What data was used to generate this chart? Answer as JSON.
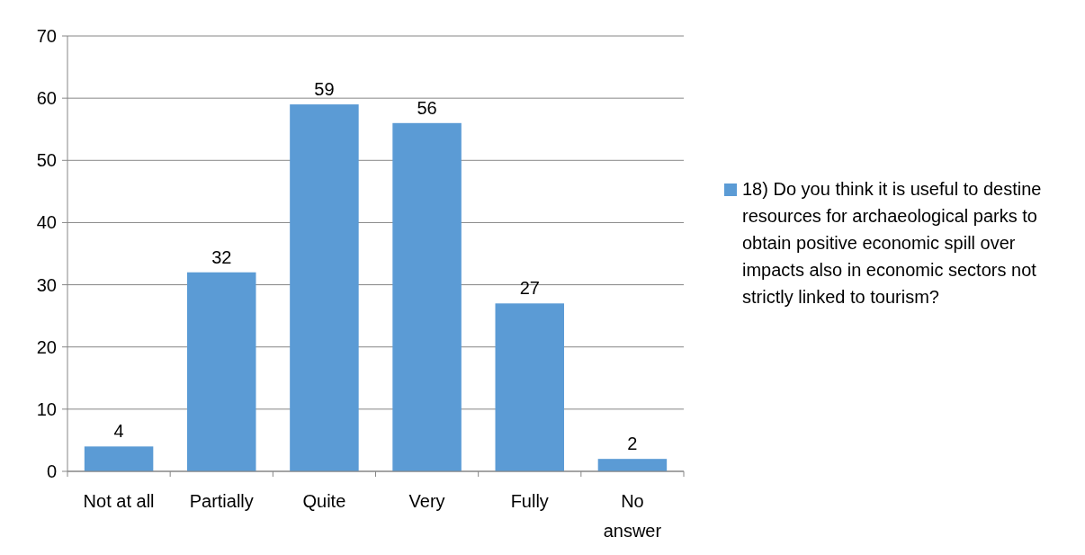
{
  "chart_data": {
    "type": "bar",
    "categories": [
      "Not at all",
      "Partially",
      "Quite",
      "Very",
      "Fully",
      "No answer"
    ],
    "series": [
      {
        "name": "18) Do you think it is useful to destine resources for archaeological parks to obtain positive economic spill over impacts also in economic sectors not strictly linked to tourism?",
        "color": "#5b9bd5",
        "values": [
          4,
          32,
          59,
          56,
          27,
          2
        ]
      }
    ],
    "ylim": [
      0,
      70
    ],
    "yticks": [
      0,
      10,
      20,
      30,
      40,
      50,
      60,
      70
    ],
    "grid": "y",
    "legend": "right",
    "data_labels": true
  }
}
